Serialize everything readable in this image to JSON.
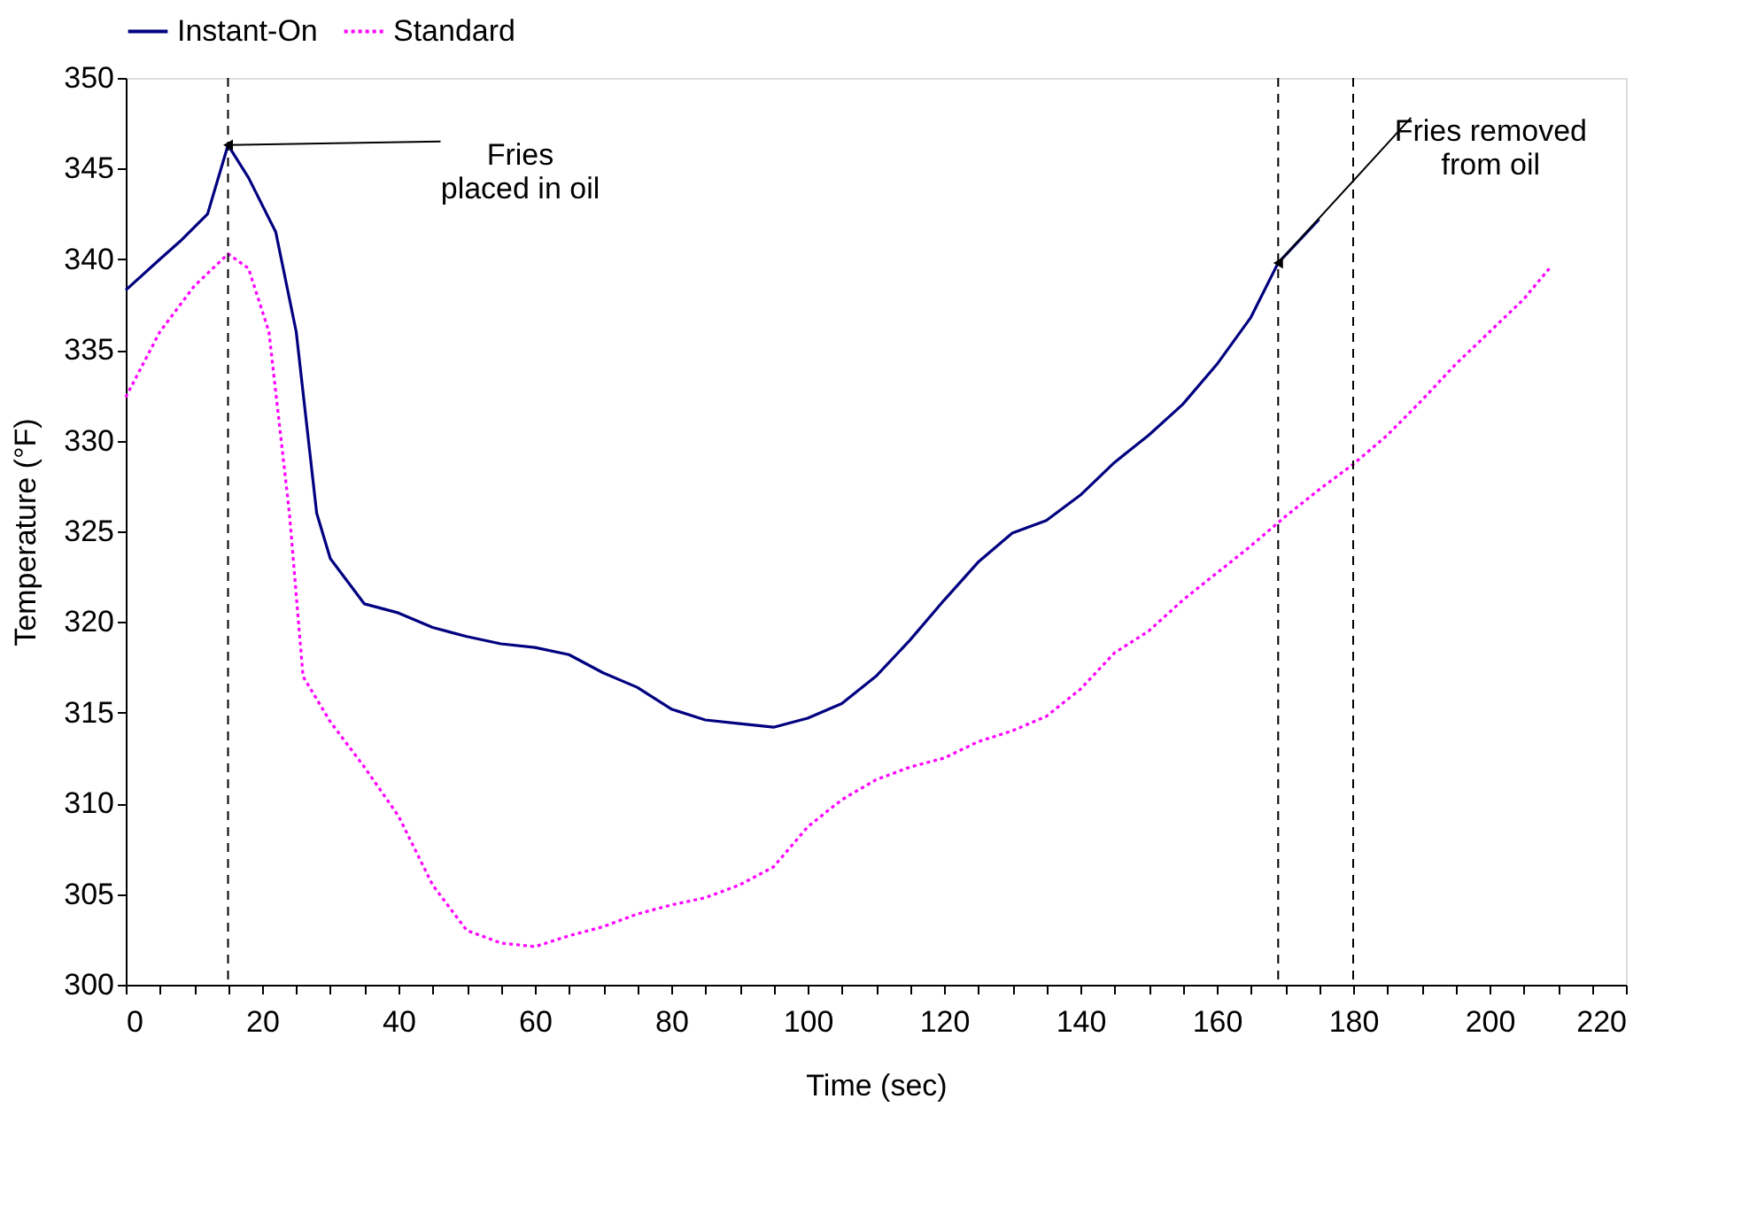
{
  "chart_data": {
    "type": "line",
    "xlabel": "Time (sec)",
    "ylabel": "Temperature (°F)",
    "xlim": [
      0,
      220
    ],
    "xticks": [
      0,
      {
        "value": 5,
        "label": null
      },
      {
        "value": 10,
        "label": null
      },
      {
        "value": 15,
        "label": null
      },
      20,
      {
        "value": 25,
        "label": null
      },
      {
        "value": 30,
        "label": null
      },
      {
        "value": 35,
        "label": null
      },
      40,
      {
        "value": 45,
        "label": null
      },
      {
        "value": 50,
        "label": null
      },
      {
        "value": 55,
        "label": null
      },
      60,
      {
        "value": 65,
        "label": null
      },
      {
        "value": 70,
        "label": null
      },
      {
        "value": 75,
        "label": null
      },
      80,
      {
        "value": 85,
        "label": null
      },
      {
        "value": 90,
        "label": null
      },
      {
        "value": 95,
        "label": null
      },
      100,
      {
        "value": 105,
        "label": null
      },
      {
        "value": 110,
        "label": null
      },
      {
        "value": 115,
        "label": null
      },
      120,
      {
        "value": 125,
        "label": null
      },
      {
        "value": 130,
        "label": null
      },
      {
        "value": 135,
        "label": null
      },
      140,
      {
        "value": 145,
        "label": null
      },
      {
        "value": 150,
        "label": null
      },
      {
        "value": 155,
        "label": null
      },
      160,
      {
        "value": 165,
        "label": null
      },
      {
        "value": 170,
        "label": null
      },
      {
        "value": 175,
        "label": null
      },
      180,
      {
        "value": 185,
        "label": null
      },
      {
        "value": 190,
        "label": null
      },
      {
        "value": 195,
        "label": null
      },
      200,
      {
        "value": 205,
        "label": null
      },
      {
        "value": 210,
        "label": null
      },
      {
        "value": 215,
        "label": null
      },
      220
    ],
    "ylim": [
      300,
      350
    ],
    "yticks": [
      300,
      305,
      310,
      315,
      320,
      325,
      330,
      335,
      340,
      345,
      350
    ],
    "grid": false,
    "legend": "top",
    "marker": "none",
    "series": [
      {
        "name": "Instant-On",
        "color": "#000080",
        "line_style": "solid",
        "x": [
          0,
          5,
          8,
          12,
          15,
          18,
          22,
          25,
          28,
          30,
          35,
          40,
          45,
          50,
          55,
          60,
          65,
          70,
          75,
          80,
          85,
          90,
          95,
          100,
          105,
          110,
          115,
          120,
          125,
          130,
          135,
          140,
          145,
          150,
          155,
          160,
          165,
          169,
          175
        ],
        "values": [
          338.3,
          340,
          341,
          342.5,
          346.3,
          344.5,
          341.5,
          336,
          326,
          323.5,
          321,
          320.5,
          319.7,
          319.2,
          318.8,
          318.6,
          318.2,
          317.2,
          316.4,
          315.2,
          314.6,
          314.4,
          314.2,
          314.7,
          315.5,
          317,
          319,
          321.2,
          323.3,
          324.9,
          325.6,
          327,
          328.8,
          330.3,
          332,
          334.2,
          336.8,
          339.8,
          342.2
        ]
      },
      {
        "name": "Standard",
        "color": "#ff00ff",
        "line_style": "dotted",
        "x": [
          0,
          5,
          10,
          15,
          18,
          21,
          24,
          26,
          30,
          35,
          40,
          45,
          50,
          55,
          60,
          65,
          70,
          75,
          80,
          85,
          90,
          95,
          100,
          105,
          110,
          115,
          120,
          125,
          130,
          135,
          140,
          145,
          150,
          155,
          160,
          165,
          170,
          175,
          180,
          185,
          190,
          195,
          200,
          205,
          209
        ],
        "values": [
          332.4,
          336,
          338.5,
          340.3,
          339.5,
          336,
          326,
          317,
          314.5,
          312,
          309.3,
          305.5,
          303,
          302.3,
          302.1,
          302.7,
          303.2,
          303.9,
          304.4,
          304.8,
          305.5,
          306.5,
          308.7,
          310.2,
          311.3,
          312,
          312.5,
          313.4,
          314,
          314.8,
          316.3,
          318.3,
          319.5,
          321.2,
          322.7,
          324.2,
          325.8,
          327.3,
          328.7,
          330.3,
          332.2,
          334.2,
          336,
          337.8,
          339.6
        ]
      }
    ],
    "ref_lines": [
      {
        "axis": "x",
        "value": 15,
        "color": "#000000",
        "line_style": "dashed"
      },
      {
        "axis": "x",
        "value": 169,
        "color": "#000000",
        "line_style": "dashed"
      },
      {
        "axis": "x",
        "value": 180,
        "color": "#000000",
        "line_style": "dashed"
      }
    ],
    "annotations": [
      {
        "text": "Fries\nplaced in oil",
        "x": 15,
        "y": 346.3
      },
      {
        "text": "Fries removed\nfrom oil",
        "x": 169,
        "y": 339.8
      }
    ]
  }
}
